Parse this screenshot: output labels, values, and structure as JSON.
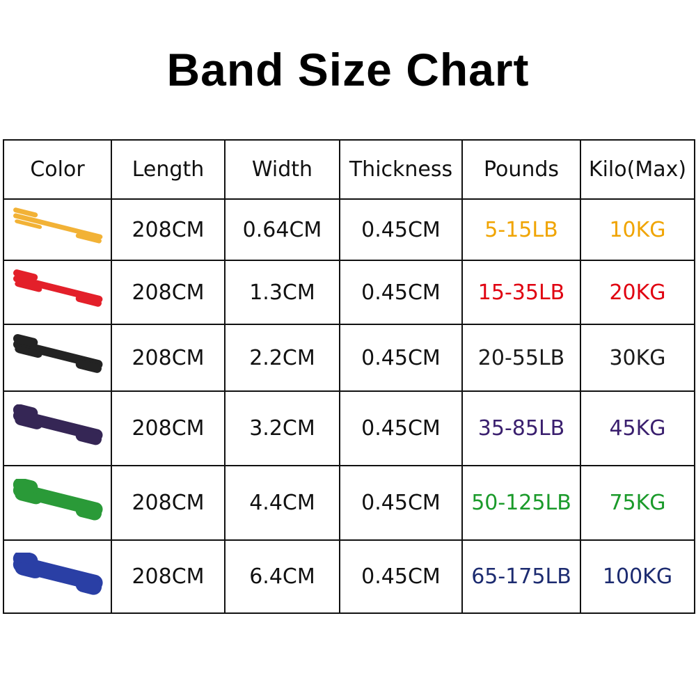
{
  "title": "Band Size Chart",
  "headers": [
    "Color",
    "Length",
    "Width",
    "Thickness",
    "Pounds",
    "Kilo(Max)"
  ],
  "rows": [
    {
      "band_color": "#f2b236",
      "text_color": "#f0a400",
      "length": "208CM",
      "width": "0.64CM",
      "thickness": "0.45CM",
      "pounds": "5-15LB",
      "kilo": "10KG",
      "band_icon": "yellow-band-icon"
    },
    {
      "band_color": "#e3202a",
      "text_color": "#e00010",
      "length": "208CM",
      "width": "1.3CM",
      "thickness": "0.45CM",
      "pounds": "15-35LB",
      "kilo": "20KG",
      "band_icon": "red-band-icon"
    },
    {
      "band_color": "#232323",
      "text_color": "#1a1a1a",
      "length": "208CM",
      "width": "2.2CM",
      "thickness": "0.45CM",
      "pounds": "20-55LB",
      "kilo": "30KG",
      "band_icon": "black-band-icon"
    },
    {
      "band_color": "#352655",
      "text_color": "#3a1f6e",
      "length": "208CM",
      "width": "3.2CM",
      "thickness": "0.45CM",
      "pounds": "35-85LB",
      "kilo": "45KG",
      "band_icon": "purple-band-icon"
    },
    {
      "band_color": "#2a9a38",
      "text_color": "#1a9a2a",
      "length": "208CM",
      "width": "4.4CM",
      "thickness": "0.45CM",
      "pounds": "50-125LB",
      "kilo": "75KG",
      "band_icon": "green-band-icon"
    },
    {
      "band_color": "#2a3fa5",
      "text_color": "#1c2b70",
      "length": "208CM",
      "width": "6.4CM",
      "thickness": "0.45CM",
      "pounds": "65-175LB",
      "kilo": "100KG",
      "band_icon": "blue-band-icon"
    }
  ]
}
